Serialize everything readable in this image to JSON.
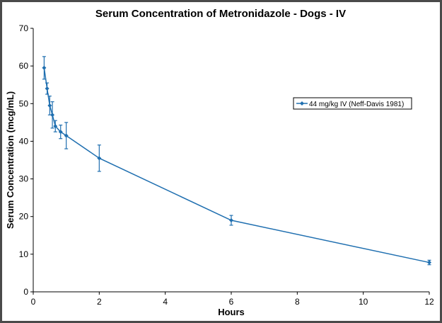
{
  "chart_data": {
    "type": "line",
    "title": "Serum Concentration  of Metronidazole  - Dogs - IV",
    "xlabel": "Hours",
    "ylabel": "Serum Concentration (mcg/mL)",
    "xlim": [
      0,
      12
    ],
    "ylim": [
      0,
      70
    ],
    "x_ticks": [
      0,
      2,
      4,
      6,
      8,
      10,
      12
    ],
    "y_ticks": [
      0,
      10,
      20,
      30,
      40,
      50,
      60,
      70
    ],
    "grid": false,
    "legend_position": "right",
    "series": [
      {
        "name": "44 mg/kg IV (Neff-Davis 1981)",
        "color": "#1f6fb0",
        "points": [
          {
            "x": 0.33,
            "y": 59.5,
            "err": 3.0
          },
          {
            "x": 0.42,
            "y": 54.0,
            "err": 1.5
          },
          {
            "x": 0.5,
            "y": 49.5,
            "err": 2.5
          },
          {
            "x": 0.58,
            "y": 47.0,
            "err": 3.5
          },
          {
            "x": 0.67,
            "y": 44.0,
            "err": 1.5
          },
          {
            "x": 0.83,
            "y": 42.5,
            "err": 1.8
          },
          {
            "x": 1.0,
            "y": 41.5,
            "err": 3.5
          },
          {
            "x": 2.0,
            "y": 35.5,
            "err": 3.5
          },
          {
            "x": 6.0,
            "y": 19.0,
            "err": 1.3
          },
          {
            "x": 12.0,
            "y": 7.8,
            "err": 0.6
          }
        ]
      }
    ]
  }
}
